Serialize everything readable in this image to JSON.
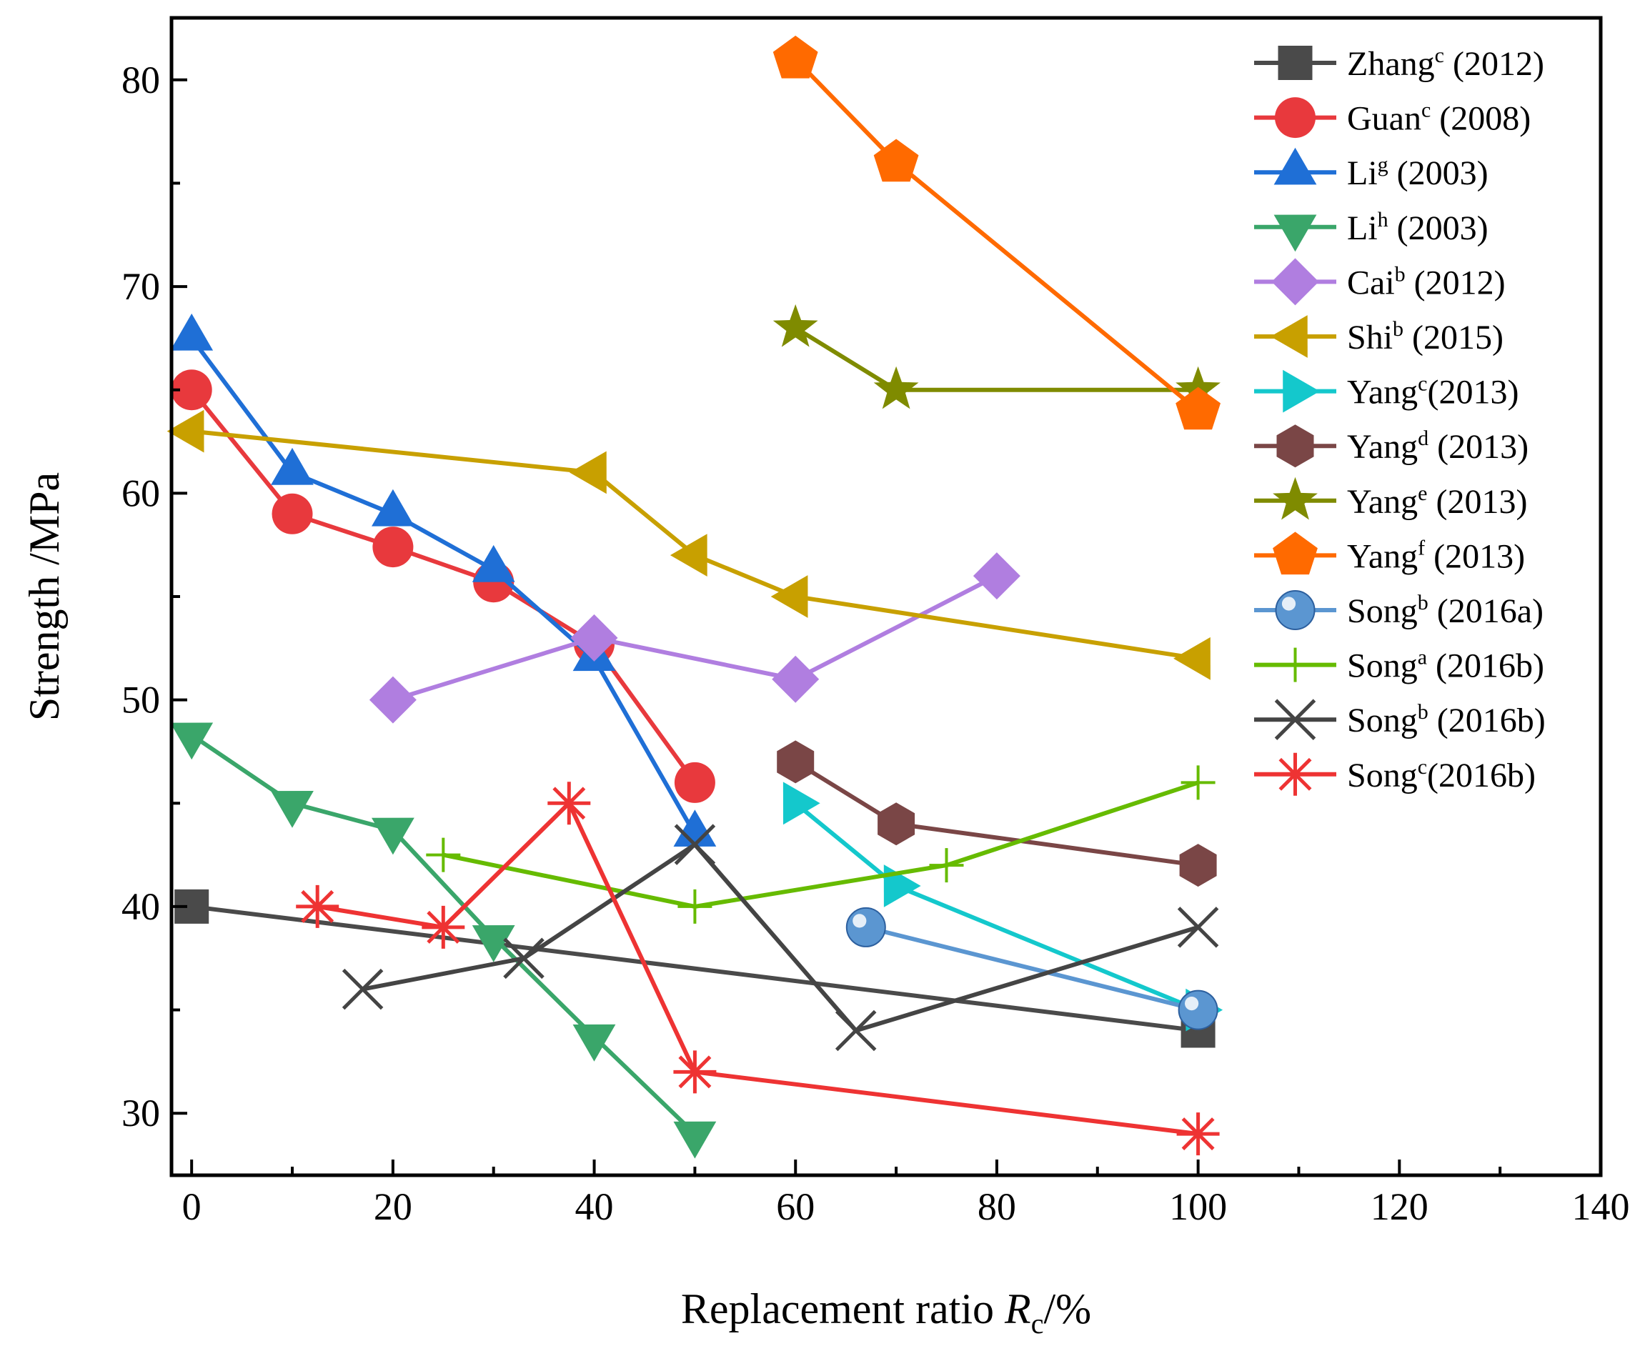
{
  "chart_data": {
    "type": "line",
    "xlabel_prefix": "Replacement ratio ",
    "xlabel_var": "R",
    "xlabel_sub": "c",
    "xlabel_suffix": "/%",
    "ylabel": "Strength /MPa",
    "xlim": [
      -2,
      140
    ],
    "ylim": [
      27,
      83
    ],
    "xticks": [
      0,
      20,
      40,
      60,
      80,
      100,
      120,
      140
    ],
    "yticks": [
      30,
      40,
      50,
      60,
      70,
      80
    ],
    "grid": false,
    "legend_position": "top-right",
    "series": [
      {
        "name": "Zhang",
        "sup": "c",
        "year": " (2012)",
        "color": "#4a4a4a",
        "marker": "square",
        "x": [
          0,
          100
        ],
        "y": [
          40,
          34
        ]
      },
      {
        "name": "Guan",
        "sup": "c",
        "year": " (2008)",
        "color": "#e8393d",
        "marker": "circle",
        "x": [
          0,
          10,
          20,
          30,
          40,
          50
        ],
        "y": [
          65,
          59,
          57.4,
          55.7,
          52.7,
          46
        ]
      },
      {
        "name": "Li",
        "sup": "g",
        "year": " (2003)",
        "color": "#1f6fd6",
        "marker": "triangle-up",
        "x": [
          0,
          10,
          20,
          30,
          40,
          50
        ],
        "y": [
          67.5,
          61,
          59,
          56.3,
          52,
          43.5
        ]
      },
      {
        "name": "Li",
        "sup": "h",
        "year": " (2003)",
        "color": "#3aa66a",
        "marker": "triangle-down",
        "x": [
          0,
          10,
          20,
          30,
          40,
          50
        ],
        "y": [
          48.3,
          45,
          43.7,
          38.5,
          33.7,
          29
        ]
      },
      {
        "name": "Cai",
        "sup": "b",
        "year": " (2012)",
        "color": "#b07ee0",
        "marker": "diamond",
        "x": [
          20,
          40,
          60,
          80
        ],
        "y": [
          50,
          53,
          51,
          56
        ]
      },
      {
        "name": "Shi",
        "sup": "b",
        "year": " (2015)",
        "color": "#c8a000",
        "marker": "triangle-left",
        "x": [
          0,
          40,
          50,
          60,
          100
        ],
        "y": [
          63,
          61,
          57,
          55,
          52
        ]
      },
      {
        "name": "Yang",
        "sup": "c",
        "year": "(2013)",
        "color": "#14c8cc",
        "marker": "triangle-right",
        "x": [
          60,
          70,
          100
        ],
        "y": [
          45,
          41,
          35
        ]
      },
      {
        "name": "Yang",
        "sup": "d",
        "year": " (2013)",
        "color": "#7a4646",
        "marker": "hexagon",
        "x": [
          60,
          70,
          100
        ],
        "y": [
          47,
          44,
          42
        ]
      },
      {
        "name": "Yang",
        "sup": "e",
        "year": " (2013)",
        "color": "#7f8b00",
        "marker": "star",
        "x": [
          60,
          70,
          100
        ],
        "y": [
          68,
          65,
          65
        ]
      },
      {
        "name": "Yang",
        "sup": "f",
        "year": " (2013)",
        "color": "#ff6a00",
        "marker": "pentagon",
        "x": [
          60,
          70,
          100
        ],
        "y": [
          81,
          76,
          64
        ]
      },
      {
        "name": "Song",
        "sup": "b",
        "year": " (2016a)",
        "color": "#5b96d1",
        "marker": "sphere",
        "x": [
          67,
          100
        ],
        "y": [
          39,
          35
        ]
      },
      {
        "name": "Song",
        "sup": "a",
        "year": " (2016b)",
        "color": "#66bb00",
        "marker": "plus",
        "x": [
          25,
          50,
          75,
          100
        ],
        "y": [
          42.5,
          40,
          42,
          46
        ]
      },
      {
        "name": "Song",
        "sup": "b",
        "year": " (2016b)",
        "color": "#444444",
        "marker": "x",
        "x": [
          17,
          33,
          50,
          66,
          100
        ],
        "y": [
          36,
          37.5,
          43,
          34,
          39
        ]
      },
      {
        "name": "Song",
        "sup": "c",
        "year": "(2016b)",
        "color": "#ee3333",
        "marker": "asterisk",
        "x": [
          12.5,
          25,
          37.5,
          50,
          100
        ],
        "y": [
          40,
          39,
          45,
          32,
          29
        ]
      }
    ]
  }
}
